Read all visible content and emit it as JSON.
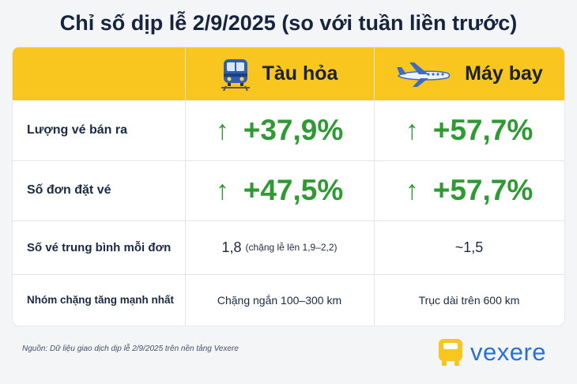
{
  "title": "Chỉ số dịp lễ 2/9/2025 (so với tuần liền trước)",
  "columns": {
    "train": {
      "label": "Tàu hỏa",
      "icon": "train-icon"
    },
    "plane": {
      "label": "Máy bay",
      "icon": "airplane-icon"
    }
  },
  "rows": [
    {
      "label": "Lượng vé bán ra",
      "train": "+37,9%",
      "plane": "+57,7%",
      "arrow": "↑"
    },
    {
      "label": "Số đơn đặt vé",
      "train": "+47,5%",
      "plane": "+57,7%",
      "arrow": "↑"
    },
    {
      "label": "Số vé trung bình mỗi đơn",
      "train_main": "1,8",
      "train_note": "(chặng lễ lên 1,9–2,2)",
      "plane": "~1,5"
    },
    {
      "label": "Nhóm chặng tăng mạnh nhất",
      "train": "Chặng ngắn 100–300 km",
      "plane": "Trục dài trên 600 km"
    }
  ],
  "footnote": "Nguồn: Dữ liệu giao dịch dịp lễ 2/9/2025 trên nền tảng Vexere",
  "logo": {
    "text": "vexere"
  },
  "colors": {
    "header": "#f8c61e",
    "increase": "#2f9a33",
    "brand": "#2a6fd8"
  }
}
